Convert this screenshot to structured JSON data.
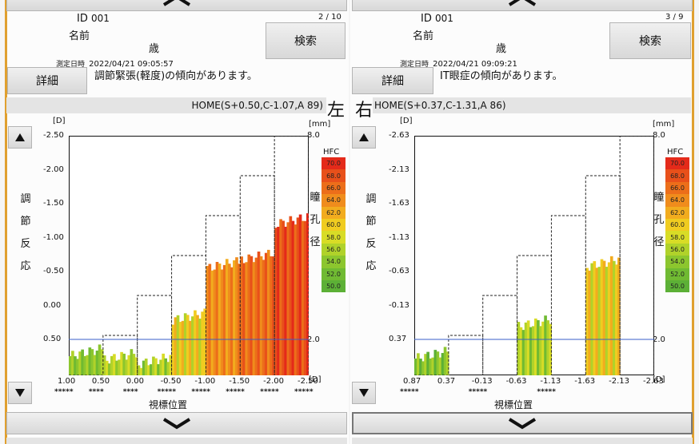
{
  "left": {
    "id_label": "ID",
    "id_value": "001",
    "page": "2 / 10",
    "name_label": "名前",
    "age_label": "歳",
    "datetime_label": "測定日時",
    "datetime": "2022/04/21 09:05:57",
    "search_label": "検索",
    "detail_label": "詳細",
    "message": "調節緊張(軽度)の傾向があります。",
    "home": "HOME(S+0.50,C-1.07,A 89)",
    "side_label": "左",
    "unit_d": "[D]",
    "unit_mm": "[mm]",
    "y_ticks": [
      "-2.50",
      "-2.00",
      "-1.50",
      "-1.00",
      "-0.50",
      "0.00",
      "0.50"
    ],
    "x_ticks": [
      "1.00",
      "0.50",
      "0.00",
      "-0.50",
      "-1.00",
      "-1.50",
      "-2.00",
      "-2.50"
    ],
    "x_unit": "[D]",
    "stars": [
      "*****",
      "****",
      "****",
      "*****",
      "*****",
      "*****",
      "*****",
      "*****"
    ],
    "mm_top": "8.0",
    "mm_bottom": "2.0"
  },
  "right": {
    "id_label": "ID",
    "id_value": "001",
    "page": "3 / 9",
    "name_label": "名前",
    "age_label": "歳",
    "datetime_label": "測定日時",
    "datetime": "2022/04/21 09:09:21",
    "search_label": "検索",
    "detail_label": "詳細",
    "message": "IT眼症の傾向があります。",
    "home": "HOME(S+0.37,C-1.31,A 86)",
    "side_label": "右",
    "unit_d": "[D]",
    "unit_mm": "[mm]",
    "y_ticks": [
      "-2.63",
      "-2.13",
      "-1.63",
      "-1.13",
      "-0.63",
      "-0.13",
      "0.37"
    ],
    "x_ticks": [
      "0.87",
      "0.37",
      "-0.13",
      "-0.63",
      "-1.13",
      "-1.63",
      "-2.13",
      "-2.63"
    ],
    "x_unit": "[D]",
    "stars": [
      "*****",
      "",
      "*****",
      "",
      "*****",
      "",
      ""
    ],
    "mm_top": "8.0",
    "mm_bottom": "2.0"
  },
  "shared": {
    "vertical_left": [
      "調",
      "節",
      "反",
      "応"
    ],
    "vertical_right": [
      "瞳",
      "孔",
      "径"
    ],
    "hfc_label": "HFC",
    "hfc_scale": [
      "70.0",
      "68.0",
      "66.0",
      "64.0",
      "62.0",
      "60.0",
      "58.0",
      "56.0",
      "54.0",
      "52.0",
      "50.0"
    ],
    "hfc_colors": [
      "#e42a1a",
      "#e8501a",
      "#ec6e1a",
      "#f08c1c",
      "#f2ac1e",
      "#f0cc20",
      "#d8dc26",
      "#b0d22a",
      "#8cc62e",
      "#70ba32",
      "#5cb036"
    ],
    "x_axis_title": "視標位置",
    "up_icon": "triangle-up-icon",
    "down_icon": "triangle-down-icon",
    "chevron_icon": "chevron-down-icon"
  },
  "chart_data": [
    {
      "type": "bar",
      "side": "左",
      "home": "HOME(S+0.50,C-1.07,A 89)",
      "x": [
        1.0,
        0.5,
        0.0,
        -0.5,
        -1.0,
        -1.5,
        -2.0,
        -2.5
      ],
      "response_range": [
        0.5,
        -2.5
      ],
      "segments": [
        {
          "x": 1.0,
          "response": 0.2,
          "hfc": 54
        },
        {
          "x": 0.5,
          "response": 0.25,
          "hfc": 56
        },
        {
          "x": 0.0,
          "response": 0.3,
          "hfc": 55
        },
        {
          "x": -0.5,
          "response": -0.25,
          "hfc": 59
        },
        {
          "x": -1.0,
          "response": -0.9,
          "hfc": 64
        },
        {
          "x": -1.5,
          "response": -1.0,
          "hfc": 66
        },
        {
          "x": -2.0,
          "response": -1.45,
          "hfc": 68
        }
      ],
      "target_steps": [
        0.5,
        0.0,
        -0.5,
        -1.0,
        -1.5,
        -2.0,
        -2.5
      ],
      "pupil_mm_range": [
        2.0,
        8.0
      ]
    },
    {
      "type": "bar",
      "side": "右",
      "home": "HOME(S+0.37,C-1.31,A 86)",
      "x": [
        0.87,
        0.37,
        -0.13,
        -0.63,
        -1.13,
        -1.63,
        -2.13,
        -2.63
      ],
      "response_range": [
        0.37,
        -2.63
      ],
      "segments": [
        {
          "x": 0.87,
          "response": 0.1,
          "hfc": 53
        },
        {
          "x": -0.63,
          "response": -0.3,
          "hfc": 55
        },
        {
          "x": -1.63,
          "response": -1.05,
          "hfc": 59
        }
      ],
      "target_steps": [
        0.37,
        -0.13,
        -0.63,
        -1.13,
        -1.63,
        -2.13,
        -2.63
      ],
      "pupil_mm_range": [
        2.0,
        8.0
      ]
    }
  ]
}
